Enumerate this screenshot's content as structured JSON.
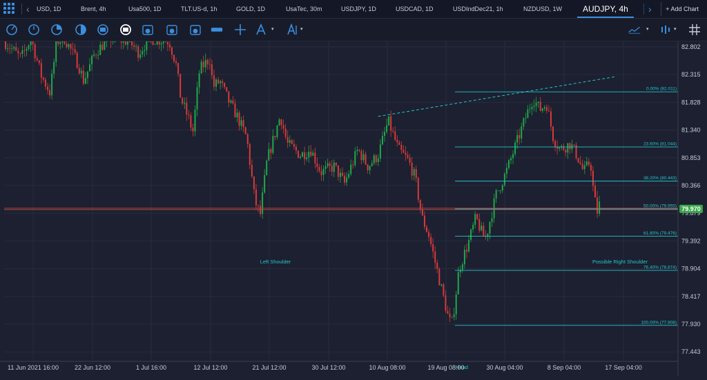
{
  "tabs": [
    {
      "label": "USD, 1D"
    },
    {
      "label": "Brent, 4h"
    },
    {
      "label": "Usa500, 1D"
    },
    {
      "label": "TLT.US-d, 1h"
    },
    {
      "label": "GOLD, 1D"
    },
    {
      "label": "UsaTec, 30m"
    },
    {
      "label": "USDJPY, 1D"
    },
    {
      "label": "USDCAD, 1D"
    },
    {
      "label": "USDIndDec21, 1h"
    },
    {
      "label": "NZDUSD, 1W"
    },
    {
      "label": "AUDJPY, 4h",
      "active": true
    }
  ],
  "add_chart_label": "+ Add Chart",
  "toolbar_icons": [
    "circle-icon",
    "clock-icon",
    "pie-icon",
    "half-circle-icon",
    "mid-icon",
    "sessions-icon",
    "calendar-d-icon",
    "calendar-w-icon",
    "calendar-m-icon",
    "ruler-icon",
    "crosshair-icon",
    "pen-icon",
    "text-icon",
    "line-chart-icon",
    "indicator-icon",
    "grid-icon"
  ],
  "colors": {
    "up": "#1fa94a",
    "down": "#d83a3a",
    "fib": "#27c4cc",
    "bg": "#1c2030",
    "price_line": "#b33a3a",
    "current_price_bg": "#3aa64a"
  },
  "chart_data": {
    "type": "candlestick",
    "symbol": "AUDJPY",
    "timeframe": "4h",
    "ylim": [
      77.3,
      82.85
    ],
    "y_ticks": [
      "82.802",
      "82.315",
      "81.828",
      "81.340",
      "80.853",
      "80.366",
      "79.879",
      "79.392",
      "78.904",
      "78.417",
      "77.930",
      "77.443"
    ],
    "x_ticks": [
      "11 Jun 2021 16:00",
      "22 Jun 12:00",
      "1 Jul 16:00",
      "12 Jul 12:00",
      "21 Jul 12:00",
      "30 Jul 12:00",
      "10 Aug 08:00",
      "19 Aug 08:00",
      "30 Aug 04:00",
      "8 Sep 04:00",
      "17 Sep 04:00"
    ],
    "current_price": "79.970",
    "fib_levels": [
      {
        "label": "0.00% (82.011)",
        "value": 82.011
      },
      {
        "label": "23.60% (81.044)",
        "value": 81.044
      },
      {
        "label": "38.20% (80.443)",
        "value": 80.443
      },
      {
        "label": "50.00% (79.955)",
        "value": 79.955
      },
      {
        "label": "61.80% (79.476)",
        "value": 79.476
      },
      {
        "label": "76.40% (78.874)",
        "value": 78.874
      },
      {
        "label": "100.00% (77.908)",
        "value": 77.908
      }
    ],
    "annotations": [
      "Left Shoulder",
      "Head",
      "Possible Right Shoulder"
    ],
    "trendline": {
      "points": [
        [
          0.555,
          81.58
        ],
        [
          0.908,
          82.28
        ]
      ],
      "dashed": true
    },
    "candle_path": [
      [
        0.0,
        82.9
      ],
      [
        0.025,
        82.6
      ],
      [
        0.04,
        82.95
      ],
      [
        0.055,
        82.3
      ],
      [
        0.068,
        82.0
      ],
      [
        0.078,
        82.9
      ],
      [
        0.09,
        82.95
      ],
      [
        0.11,
        82.5
      ],
      [
        0.118,
        82.2
      ],
      [
        0.135,
        82.7
      ],
      [
        0.155,
        82.95
      ],
      [
        0.185,
        82.9
      ],
      [
        0.2,
        82.7
      ],
      [
        0.215,
        82.95
      ],
      [
        0.245,
        82.9
      ],
      [
        0.255,
        82.5
      ],
      [
        0.262,
        81.9
      ],
      [
        0.275,
        81.5
      ],
      [
        0.28,
        81.3
      ],
      [
        0.29,
        82.4
      ],
      [
        0.305,
        82.6
      ],
      [
        0.31,
        82.1
      ],
      [
        0.32,
        82.2
      ],
      [
        0.335,
        81.8
      ],
      [
        0.345,
        81.6
      ],
      [
        0.36,
        81.2
      ],
      [
        0.372,
        80.1
      ],
      [
        0.38,
        79.85
      ],
      [
        0.39,
        80.8
      ],
      [
        0.41,
        81.6
      ],
      [
        0.42,
        81.1
      ],
      [
        0.43,
        81.0
      ],
      [
        0.44,
        80.9
      ],
      [
        0.455,
        81.0
      ],
      [
        0.47,
        80.6
      ],
      [
        0.49,
        80.7
      ],
      [
        0.505,
        80.4
      ],
      [
        0.525,
        81.0
      ],
      [
        0.54,
        80.7
      ],
      [
        0.555,
        80.9
      ],
      [
        0.57,
        81.5
      ],
      [
        0.585,
        81.0
      ],
      [
        0.6,
        80.8
      ],
      [
        0.61,
        80.5
      ],
      [
        0.62,
        79.8
      ],
      [
        0.63,
        79.5
      ],
      [
        0.64,
        79.0
      ],
      [
        0.65,
        78.5
      ],
      [
        0.66,
        78.0
      ],
      [
        0.665,
        77.95
      ],
      [
        0.675,
        78.9
      ],
      [
        0.69,
        79.4
      ],
      [
        0.7,
        79.8
      ],
      [
        0.71,
        79.5
      ],
      [
        0.715,
        79.45
      ],
      [
        0.73,
        80.2
      ],
      [
        0.745,
        80.6
      ],
      [
        0.76,
        81.1
      ],
      [
        0.775,
        81.6
      ],
      [
        0.785,
        81.9
      ],
      [
        0.795,
        81.7
      ],
      [
        0.805,
        81.8
      ],
      [
        0.815,
        81.2
      ],
      [
        0.825,
        81.0
      ],
      [
        0.84,
        81.1
      ],
      [
        0.85,
        80.9
      ],
      [
        0.86,
        80.6
      ],
      [
        0.87,
        80.8
      ],
      [
        0.875,
        80.2
      ],
      [
        0.88,
        79.9
      ],
      [
        0.885,
        80.1
      ]
    ]
  }
}
